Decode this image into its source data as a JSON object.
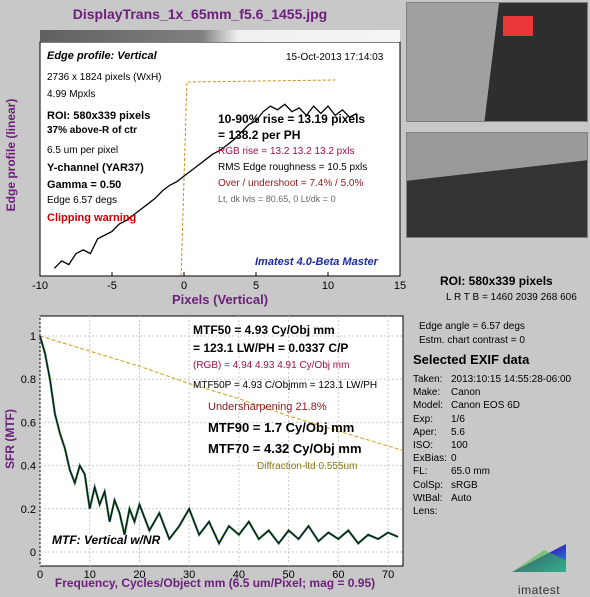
{
  "window_title": "DisplayTrans_1x_65mm_f5.6_1455.jpg",
  "top_chart": {
    "header": "Edge profile: Vertical",
    "date": "15-Oct-2013 17:14:03",
    "ylabel": "Edge profile (linear)",
    "xlabel": "Pixels (Vertical)",
    "x_ticks": [
      "-10",
      "-5",
      "0",
      "5",
      "10",
      "15"
    ],
    "xlim": [
      -10,
      15
    ],
    "info": {
      "size": "2736 x 1824 pixels (WxH)",
      "mpxls": "4.99 Mpxls",
      "roi": "ROI:  580x339 pixels",
      "above": "37% above-R of ctr",
      "um_per_px": "6.5 um per pixel",
      "channel": "Y-channel  (YAR37)",
      "gamma": "Gamma = 0.50",
      "edge": "Edge 6.57 degs",
      "clipping": "Clipping warning"
    },
    "rise_line1": "10-90% rise = 13.19 pixels",
    "rise_line2": "= 138.2 per PH",
    "rgb_rise": "RGB rise = 13.2  13.2  13.2 pxls",
    "roughness": "RMS Edge roughness = 10.5 pxls",
    "overshoot": "Over / undershoot = 7.4% / 5.0%",
    "levels": "Lt, dk lvls = 80.65, 0   Lt/dk = 0",
    "brand_note": "Imatest 4.0-Beta Master"
  },
  "roi_info": {
    "title": "ROI:   580x339 pixels",
    "lrtb": "L R T B = 1460 2039  268 606"
  },
  "bottom_chart": {
    "ylabel": "SFR (MTF)",
    "xlabel": "Frequency, Cycles/Object mm  (6.5 um/Pixel;  mag = 0.95)",
    "x_ticks": [
      "0",
      "10",
      "20",
      "30",
      "40",
      "50",
      "60",
      "70"
    ],
    "y_ticks": [
      "0",
      "0.2",
      "0.4",
      "0.6",
      "0.8",
      "1"
    ],
    "xlim": [
      0,
      73
    ],
    "ylim": [
      0,
      1
    ],
    "mtf50_line1": "MTF50 = 4.93 Cy/Obj mm",
    "mtf50_line2": "= 123.1 LW/PH = 0.0337 C/P",
    "rgb": "(RGB) = 4.94  4.93  4.91 Cy/Obj mm",
    "mtf50p": "MTF50P = 4.93 C/Objmm = 123.1 LW/PH",
    "undersharpening": "Undersharpening 21.8%",
    "mtf90": "MTF90 = 1.7 Cy/Obj mm",
    "mtf70": "MTF70 = 4.32 Cy/Obj mm",
    "diffraction": "Diffraction-ltd  0.555um",
    "corner_label": "MTF: Vertical w/NR"
  },
  "side_info": {
    "edge_angle": "Edge angle = 6.57 degs",
    "chart_contrast": "Estm. chart contrast = 0"
  },
  "exif": {
    "title": "Selected EXIF data",
    "rows": [
      {
        "k": "Taken:",
        "v": "2013:10:15 14:55:28-06:00"
      },
      {
        "k": "Make:",
        "v": "Canon"
      },
      {
        "k": "Model:",
        "v": "Canon EOS 6D"
      },
      {
        "k": "Exp:",
        "v": "1/6"
      },
      {
        "k": "Aper:",
        "v": "5.6"
      },
      {
        "k": "ISO:",
        "v": "100"
      },
      {
        "k": "ExBias:",
        "v": "0"
      },
      {
        "k": "FL:",
        "v": "65.0 mm"
      },
      {
        "k": "ColSp:",
        "v": "sRGB"
      },
      {
        "k": "WtBal:",
        "v": "Auto"
      },
      {
        "k": "Lens:",
        "v": ""
      }
    ]
  },
  "logo_text": "imatest",
  "chart_data": [
    {
      "type": "line",
      "title": "Edge profile: Vertical",
      "xlabel": "Pixels (Vertical)",
      "ylabel": "Edge profile (linear)",
      "xlim": [
        -10,
        15
      ],
      "series": [
        {
          "x": [
            -9,
            -8.5,
            -8,
            -7.5,
            -7,
            -6.5,
            -6,
            -5.5,
            -5,
            -4.5,
            -4,
            -3.5,
            -3,
            -2.5,
            -2,
            -1.5,
            -1,
            -0.5,
            0,
            0.5,
            1,
            1.5,
            2,
            2.5,
            3,
            3.5,
            4,
            4.5,
            5,
            5.5,
            6,
            6.5,
            7,
            7.5,
            8,
            8.5,
            9,
            9.5,
            10,
            10.5,
            11,
            11.5,
            12
          ],
          "y": [
            0.02,
            0.06,
            0.04,
            0.1,
            0.12,
            0.1,
            0.18,
            0.2,
            0.22,
            0.26,
            0.28,
            0.31,
            0.34,
            0.37,
            0.4,
            0.44,
            0.47,
            0.49,
            0.52,
            0.55,
            0.58,
            0.61,
            0.64,
            0.66,
            0.69,
            0.72,
            0.76,
            0.8,
            0.82,
            0.87,
            0.9,
            0.88,
            0.91,
            0.87,
            0.89,
            0.85,
            0.9,
            0.86,
            0.9,
            0.85,
            0.88,
            0.84,
            0.86
          ]
        }
      ]
    },
    {
      "type": "line",
      "xlabel": "Frequency, Cycles/Object mm  (6.5 um/Pixel;  mag = 0.95)",
      "ylabel": "SFR (MTF)",
      "xlim": [
        0,
        73
      ],
      "ylim": [
        0,
        1
      ],
      "series": [
        {
          "x": [
            0,
            1,
            2,
            3,
            4,
            5,
            6,
            7,
            8,
            9,
            10,
            11,
            12,
            13,
            14,
            15,
            16,
            17,
            18,
            19,
            20,
            22,
            24,
            26,
            28,
            30,
            32,
            34,
            36,
            38,
            40,
            42,
            44,
            46,
            48,
            50,
            52,
            54,
            56,
            58,
            60,
            62,
            64,
            66,
            68,
            70,
            72
          ],
          "y": [
            1,
            0.92,
            0.8,
            0.64,
            0.55,
            0.48,
            0.38,
            0.32,
            0.4,
            0.36,
            0.2,
            0.3,
            0.22,
            0.28,
            0.14,
            0.24,
            0.18,
            0.08,
            0.2,
            0.14,
            0.22,
            0.1,
            0.18,
            0.06,
            0.12,
            0.2,
            0.08,
            0.14,
            0.04,
            0.12,
            0.08,
            0.14,
            0.06,
            0.1,
            0.04,
            0.1,
            0.06,
            0.12,
            0.05,
            0.09,
            0.06,
            0.1,
            0.04,
            0.08,
            0.06,
            0.09,
            0.07
          ]
        },
        {
          "x": [
            0,
            10,
            20,
            30,
            40,
            50,
            60,
            73
          ],
          "y": [
            1,
            0.93,
            0.86,
            0.78,
            0.71,
            0.63,
            0.56,
            0.47
          ]
        }
      ]
    }
  ]
}
